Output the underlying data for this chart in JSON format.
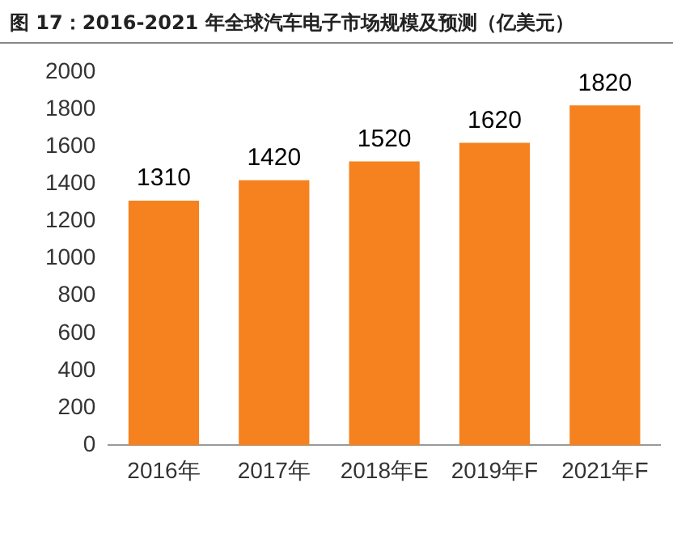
{
  "chart_data": {
    "type": "bar",
    "title": "图 17：2016-2021 年全球汽车电子市场规模及预测（亿美元）",
    "categories": [
      "2016年",
      "2017年",
      "2018年E",
      "2019年F",
      "2021年F"
    ],
    "values": [
      1310,
      1420,
      1520,
      1620,
      1820
    ],
    "color": "#f5821f",
    "ylim": [
      0,
      2000
    ],
    "yticks": [
      0,
      200,
      400,
      600,
      800,
      1000,
      1200,
      1400,
      1600,
      1800,
      2000
    ],
    "grid": false,
    "legend": false,
    "data_labels": true
  }
}
